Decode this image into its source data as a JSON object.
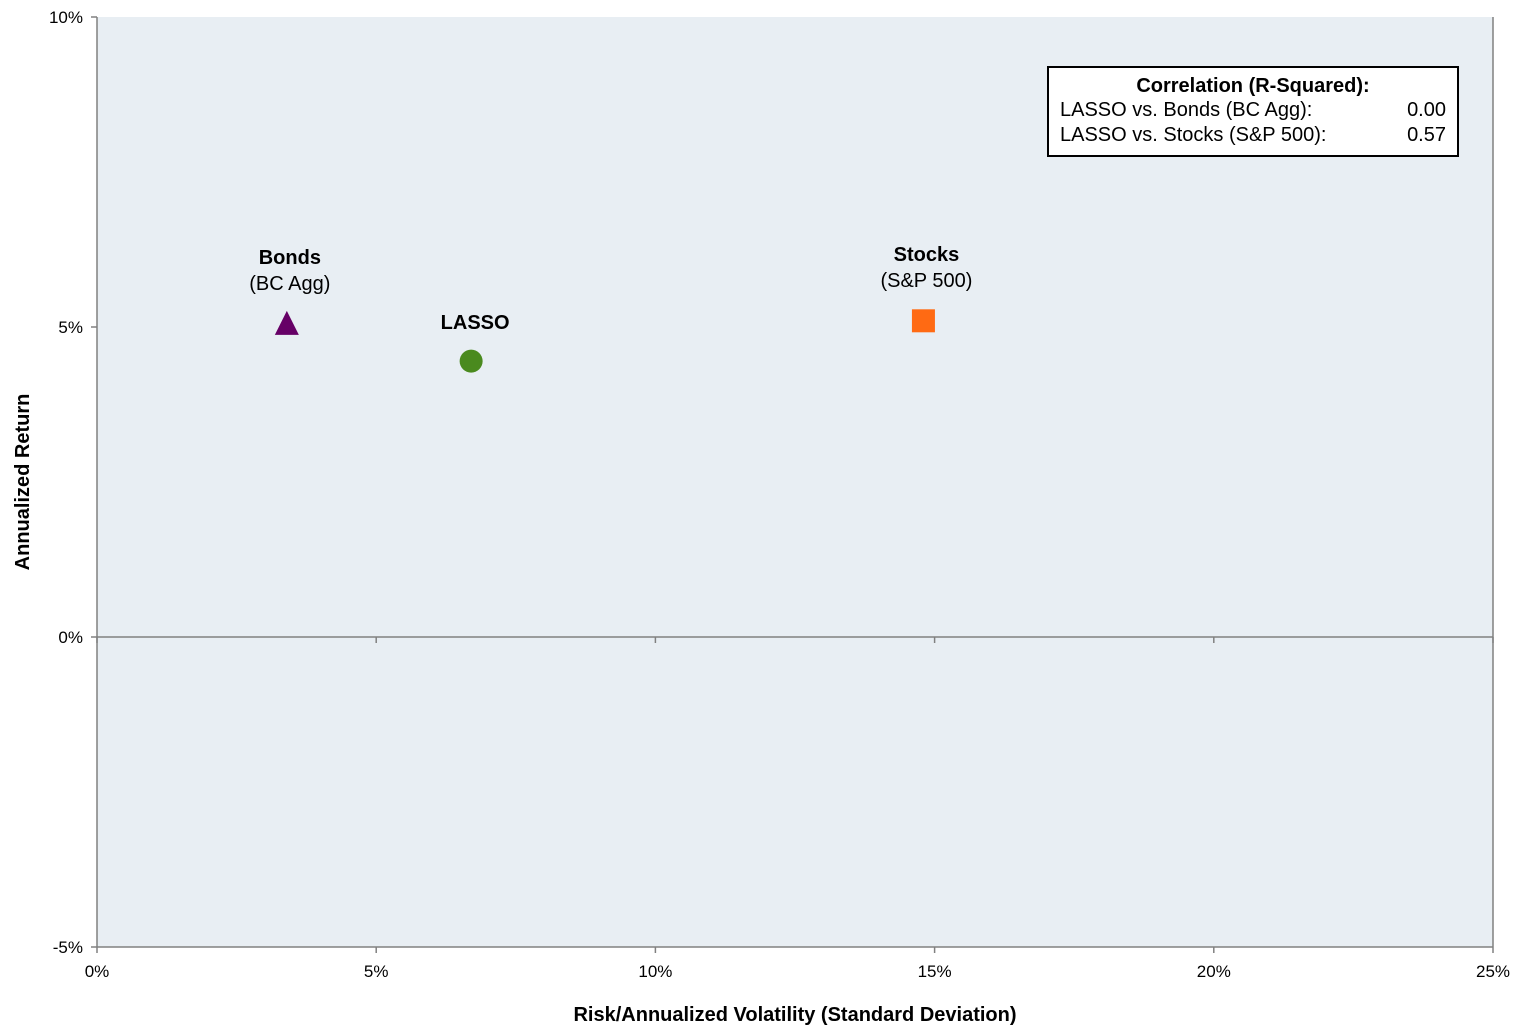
{
  "chart_data": {
    "type": "scatter",
    "xlabel": "Risk/Annualized Volatility (Standard Deviation)",
    "ylabel": "Annualized Return",
    "xlim": [
      0,
      25
    ],
    "ylim": [
      -5,
      10
    ],
    "x_ticks": [
      0,
      5,
      10,
      15,
      20,
      25
    ],
    "y_ticks": [
      -5,
      0,
      5,
      10
    ],
    "x_tick_labels": [
      "0%",
      "5%",
      "10%",
      "15%",
      "20%",
      "25%"
    ],
    "y_tick_labels": [
      "-5%",
      "0%",
      "5%",
      "10%"
    ],
    "grid": false,
    "plot_background": "#E8EEF3",
    "points": [
      {
        "name": "Bonds",
        "subtitle": "(BC Agg)",
        "x": 3.4,
        "y": 5.05,
        "marker": "triangle",
        "color": "#660066"
      },
      {
        "name": "LASSO",
        "subtitle": "",
        "x": 6.7,
        "y": 4.45,
        "marker": "circle",
        "color": "#4A8A1E"
      },
      {
        "name": "Stocks",
        "subtitle": "(S&P 500)",
        "x": 14.8,
        "y": 5.1,
        "marker": "square",
        "color": "#FF6A13"
      }
    ]
  },
  "correlation_box": {
    "title": "Correlation (R-Squared):",
    "rows": [
      {
        "label": "LASSO vs. Bonds (BC Agg):",
        "value": "0.00"
      },
      {
        "label": "LASSO vs. Stocks (S&P 500):",
        "value": "0.57"
      }
    ]
  }
}
